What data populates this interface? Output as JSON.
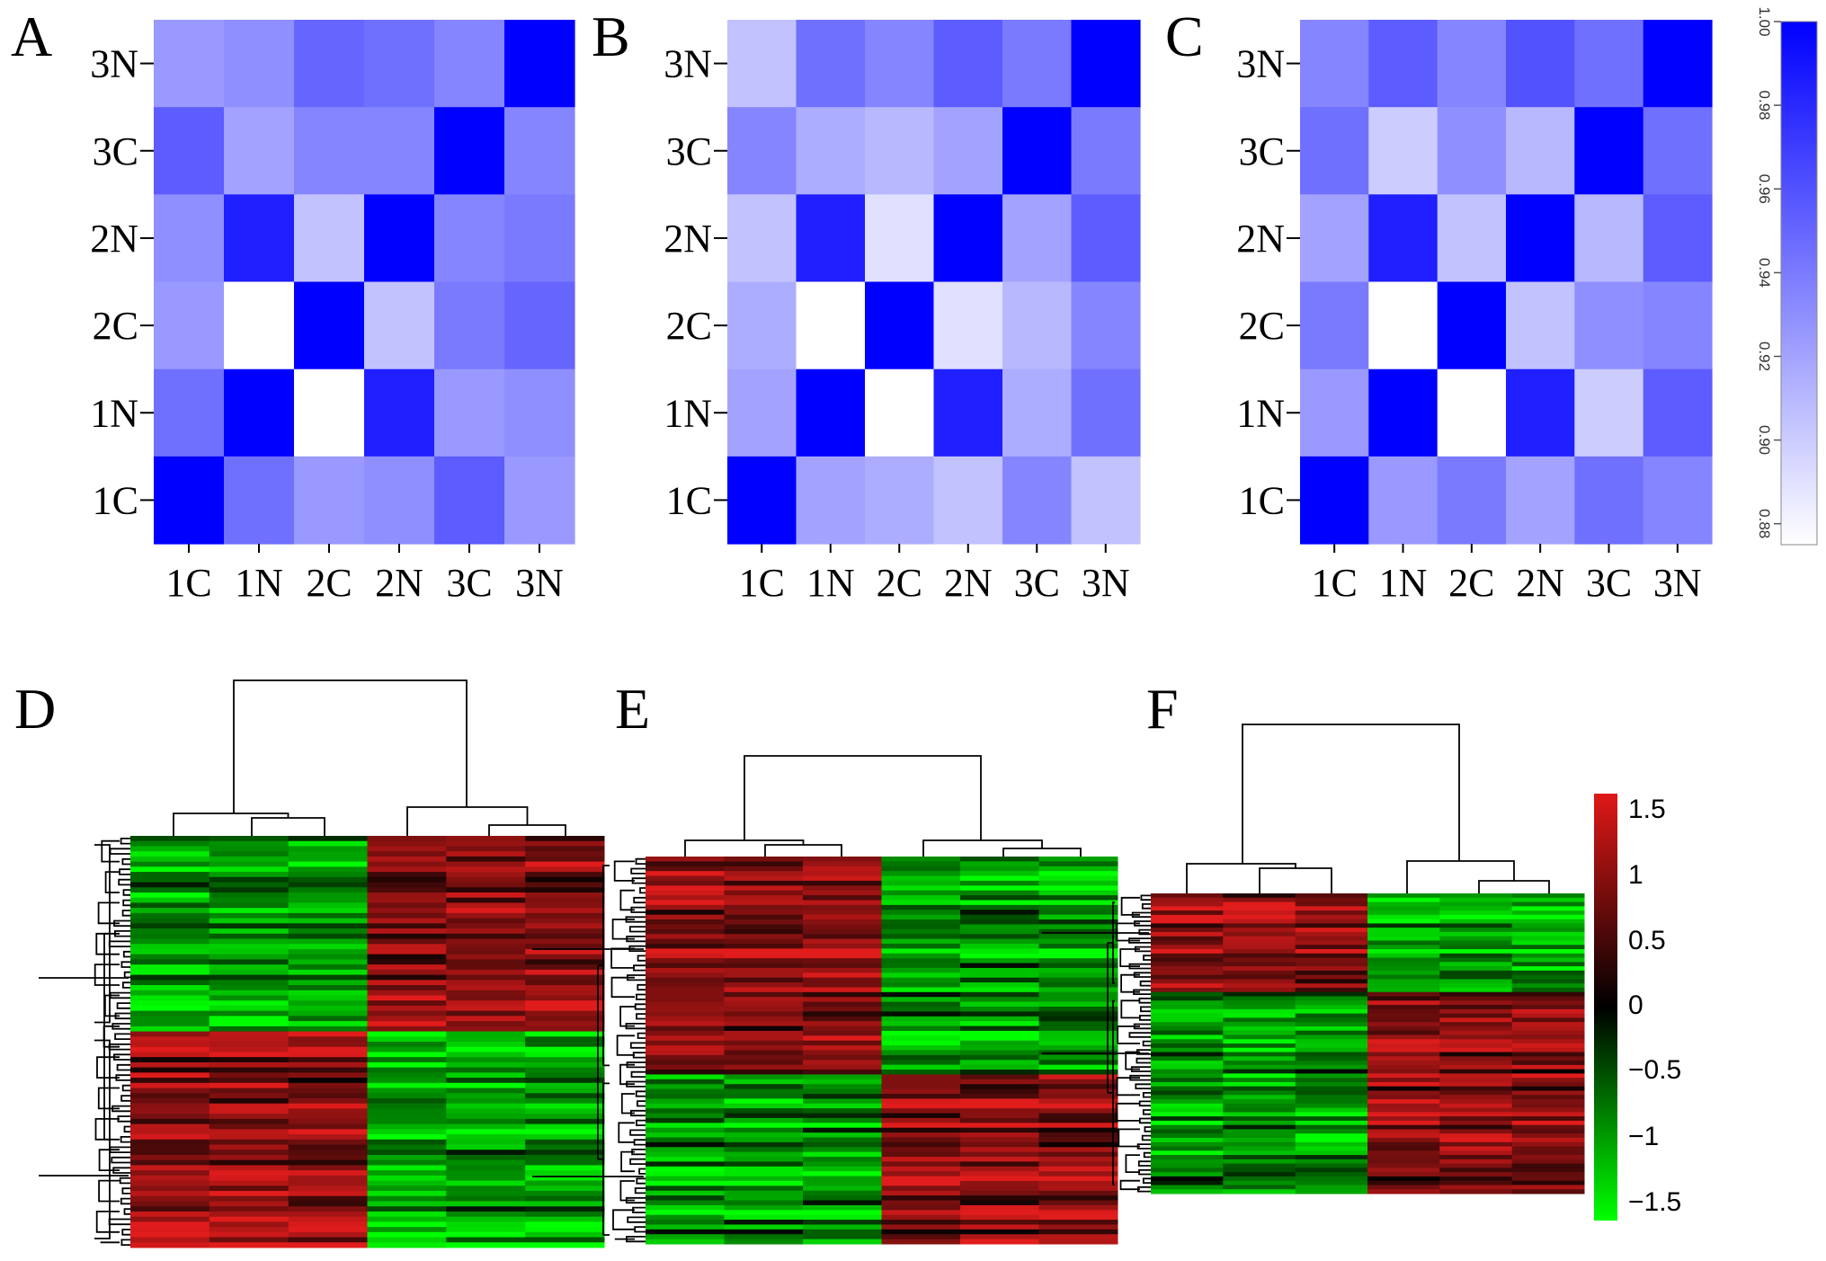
{
  "chart_data": [
    {
      "panel": "A",
      "type": "heatmap",
      "x_labels": [
        "1C",
        "1N",
        "2C",
        "2N",
        "3C",
        "3N"
      ],
      "y_labels": [
        "3N",
        "3C",
        "2N",
        "2C",
        "1N",
        "1C"
      ],
      "values": [
        [
          0.925,
          0.93,
          0.95,
          0.945,
          0.935,
          1.0
        ],
        [
          0.955,
          0.92,
          0.935,
          0.935,
          1.0,
          0.935
        ],
        [
          0.93,
          0.985,
          0.905,
          1.0,
          0.935,
          0.94
        ],
        [
          0.925,
          0.875,
          1.0,
          0.905,
          0.94,
          0.95
        ],
        [
          0.945,
          1.0,
          0.875,
          0.985,
          0.925,
          0.93
        ],
        [
          1.0,
          0.945,
          0.925,
          0.93,
          0.955,
          0.925
        ]
      ]
    },
    {
      "panel": "B",
      "type": "heatmap",
      "x_labels": [
        "1C",
        "1N",
        "2C",
        "2N",
        "3C",
        "3N"
      ],
      "y_labels": [
        "3N",
        "3C",
        "2N",
        "2C",
        "1N",
        "1C"
      ],
      "values": [
        [
          0.905,
          0.945,
          0.935,
          0.955,
          0.94,
          1.0
        ],
        [
          0.935,
          0.915,
          0.91,
          0.92,
          1.0,
          0.94
        ],
        [
          0.905,
          0.985,
          0.89,
          1.0,
          0.92,
          0.955
        ],
        [
          0.915,
          0.875,
          1.0,
          0.89,
          0.91,
          0.935
        ],
        [
          0.92,
          1.0,
          0.875,
          0.985,
          0.915,
          0.945
        ],
        [
          1.0,
          0.92,
          0.915,
          0.905,
          0.935,
          0.905
        ]
      ]
    },
    {
      "panel": "C",
      "type": "heatmap",
      "x_labels": [
        "1C",
        "1N",
        "2C",
        "2N",
        "3C",
        "3N"
      ],
      "y_labels": [
        "3N",
        "3C",
        "2N",
        "2C",
        "1N",
        "1C"
      ],
      "values": [
        [
          0.935,
          0.955,
          0.935,
          0.96,
          0.945,
          1.0
        ],
        [
          0.945,
          0.9,
          0.93,
          0.91,
          1.0,
          0.945
        ],
        [
          0.92,
          0.985,
          0.905,
          1.0,
          0.91,
          0.955
        ],
        [
          0.94,
          0.875,
          1.0,
          0.905,
          0.93,
          0.935
        ],
        [
          0.925,
          1.0,
          0.875,
          0.985,
          0.9,
          0.955
        ],
        [
          1.0,
          0.925,
          0.94,
          0.92,
          0.945,
          0.935
        ]
      ]
    },
    {
      "panel": "D",
      "type": "heatmap",
      "columns": 6,
      "rows": 80,
      "up_rows": 38,
      "pattern": "first 3 columns low / last 3 high for the upper cluster, reversed for the lower cluster",
      "scale": [
        -1.5,
        1.5
      ]
    },
    {
      "panel": "E",
      "type": "heatmap",
      "columns": 6,
      "rows": 80,
      "up_rows": 45,
      "pattern": "first 3 columns high / last 3 low for the upper cluster, reversed for the lower cluster",
      "scale": [
        -1.5,
        1.5
      ]
    },
    {
      "panel": "F",
      "type": "heatmap",
      "columns": 6,
      "rows": 70,
      "up_rows": 23,
      "pattern": "first 3 columns high / last 3 low for the upper cluster, reversed for the lower cluster",
      "scale": [
        -1.5,
        1.5
      ]
    }
  ],
  "panels": {
    "a": "A",
    "b": "B",
    "c": "C",
    "d": "D",
    "e": "E",
    "f": "F"
  },
  "axis_labels": [
    "1C",
    "1N",
    "2C",
    "2N",
    "3C",
    "3N"
  ],
  "y_axis_labels": [
    "3N",
    "3C",
    "2N",
    "2C",
    "1N",
    "1C"
  ],
  "blue_colorbar": {
    "ticks": [
      "1.00",
      "0.98",
      "0.96",
      "0.94",
      "0.92",
      "0.90",
      "0.88"
    ],
    "range": [
      0.875,
      1.0
    ],
    "colors": {
      "low": "#ffffff",
      "high": "#0000ff"
    }
  },
  "red_green_colorbar": {
    "ticks": [
      "1.5",
      "1",
      "0.5",
      "0",
      "−0.5",
      "−1",
      "−1.5"
    ],
    "range": [
      -1.5,
      1.5
    ],
    "colors": {
      "low": "#00ff00",
      "mid": "#000000",
      "high": "#ff1e1e"
    }
  }
}
